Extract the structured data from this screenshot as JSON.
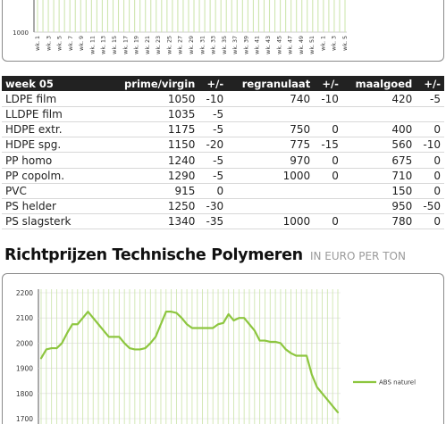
{
  "top_chart": {
    "y_tick_label": "1000",
    "x_tick_labels": [
      "wk. 1",
      "wk. 3",
      "wk. 5",
      "wk. 7",
      "wk. 9",
      "wk. 11",
      "wk. 13",
      "wk. 15",
      "wk. 17",
      "wk. 19",
      "wk. 21",
      "wk. 23",
      "wk. 25",
      "wk. 27",
      "wk. 29",
      "wk. 31",
      "wk. 33",
      "wk. 35",
      "wk. 37",
      "wk. 39",
      "wk. 41",
      "wk. 43",
      "wk. 45",
      "wk. 47",
      "wk. 49",
      "wk. 51",
      "wk. 1",
      "wk. 3",
      "wk. 5"
    ]
  },
  "table": {
    "headers": [
      "week 05",
      "prime/virgin",
      "+/-",
      "regranulaat",
      "+/-",
      "maalgoed",
      "+/-"
    ],
    "rows": [
      [
        "LDPE film",
        "1050",
        "-10",
        "740",
        "-10",
        "420",
        "-5"
      ],
      [
        "LLDPE film",
        "1035",
        "-5",
        "",
        "",
        "",
        ""
      ],
      [
        "HDPE extr.",
        "1175",
        "-5",
        "750",
        "0",
        "400",
        "0"
      ],
      [
        "HDPE spg.",
        "1150",
        "-20",
        "775",
        "-15",
        "560",
        "-10"
      ],
      [
        "PP homo",
        "1240",
        "-5",
        "970",
        "0",
        "675",
        "0"
      ],
      [
        "PP copolm.",
        "1290",
        "-5",
        "1000",
        "0",
        "710",
        "0"
      ],
      [
        "PVC",
        "915",
        "0",
        "",
        "",
        "150",
        "0"
      ],
      [
        "PS helder",
        "1250",
        "-30",
        "",
        "",
        "950",
        "-50"
      ],
      [
        "PS slagsterk",
        "1340",
        "-35",
        "1000",
        "0",
        "780",
        "0"
      ]
    ]
  },
  "section": {
    "title": "Richtprijzen Technische Polymeren",
    "unit": "IN EURO PER TON"
  },
  "colors": {
    "line_green": "#8dc63f",
    "grid_green": "#cfe6b0",
    "table_header_bg": "#222222"
  },
  "chart_data": [
    {
      "type": "bar",
      "title": "",
      "y_ticks_visible": [
        1000
      ],
      "categories": [
        "wk. 1",
        "wk. 3",
        "wk. 5",
        "wk. 7",
        "wk. 9",
        "wk. 11",
        "wk. 13",
        "wk. 15",
        "wk. 17",
        "wk. 19",
        "wk. 21",
        "wk. 23",
        "wk. 25",
        "wk. 27",
        "wk. 29",
        "wk. 31",
        "wk. 33",
        "wk. 35",
        "wk. 37",
        "wk. 39",
        "wk. 41",
        "wk. 43",
        "wk. 45",
        "wk. 47",
        "wk. 49",
        "wk. 51",
        "wk. 1",
        "wk. 3",
        "wk. 5"
      ],
      "note_partial": "only the bottom of this chart is visible; bars extend beyond top edge"
    },
    {
      "type": "line",
      "title": "",
      "ylim": [
        1700,
        2200
      ],
      "y_ticks": [
        1700,
        1800,
        1900,
        2000,
        2100,
        2200
      ],
      "grid": true,
      "legend_position": "right",
      "series": [
        {
          "name": "ABS naturel",
          "values": [
            1940,
            1975,
            1980,
            1980,
            2000,
            2040,
            2075,
            2075,
            2100,
            2125,
            2100,
            2075,
            2050,
            2025,
            2025,
            2025,
            2000,
            1980,
            1975,
            1975,
            1980,
            2000,
            2025,
            2075,
            2125,
            2125,
            2120,
            2100,
            2075,
            2060,
            2060,
            2060,
            2060,
            2060,
            2075,
            2080,
            2115,
            2090,
            2100,
            2100,
            2075,
            2050,
            2010,
            2010,
            2005,
            2005,
            2000,
            1975,
            1960,
            1950,
            1950,
            1950,
            1875,
            1825,
            1800,
            1775,
            1750,
            1725
          ]
        }
      ]
    }
  ]
}
